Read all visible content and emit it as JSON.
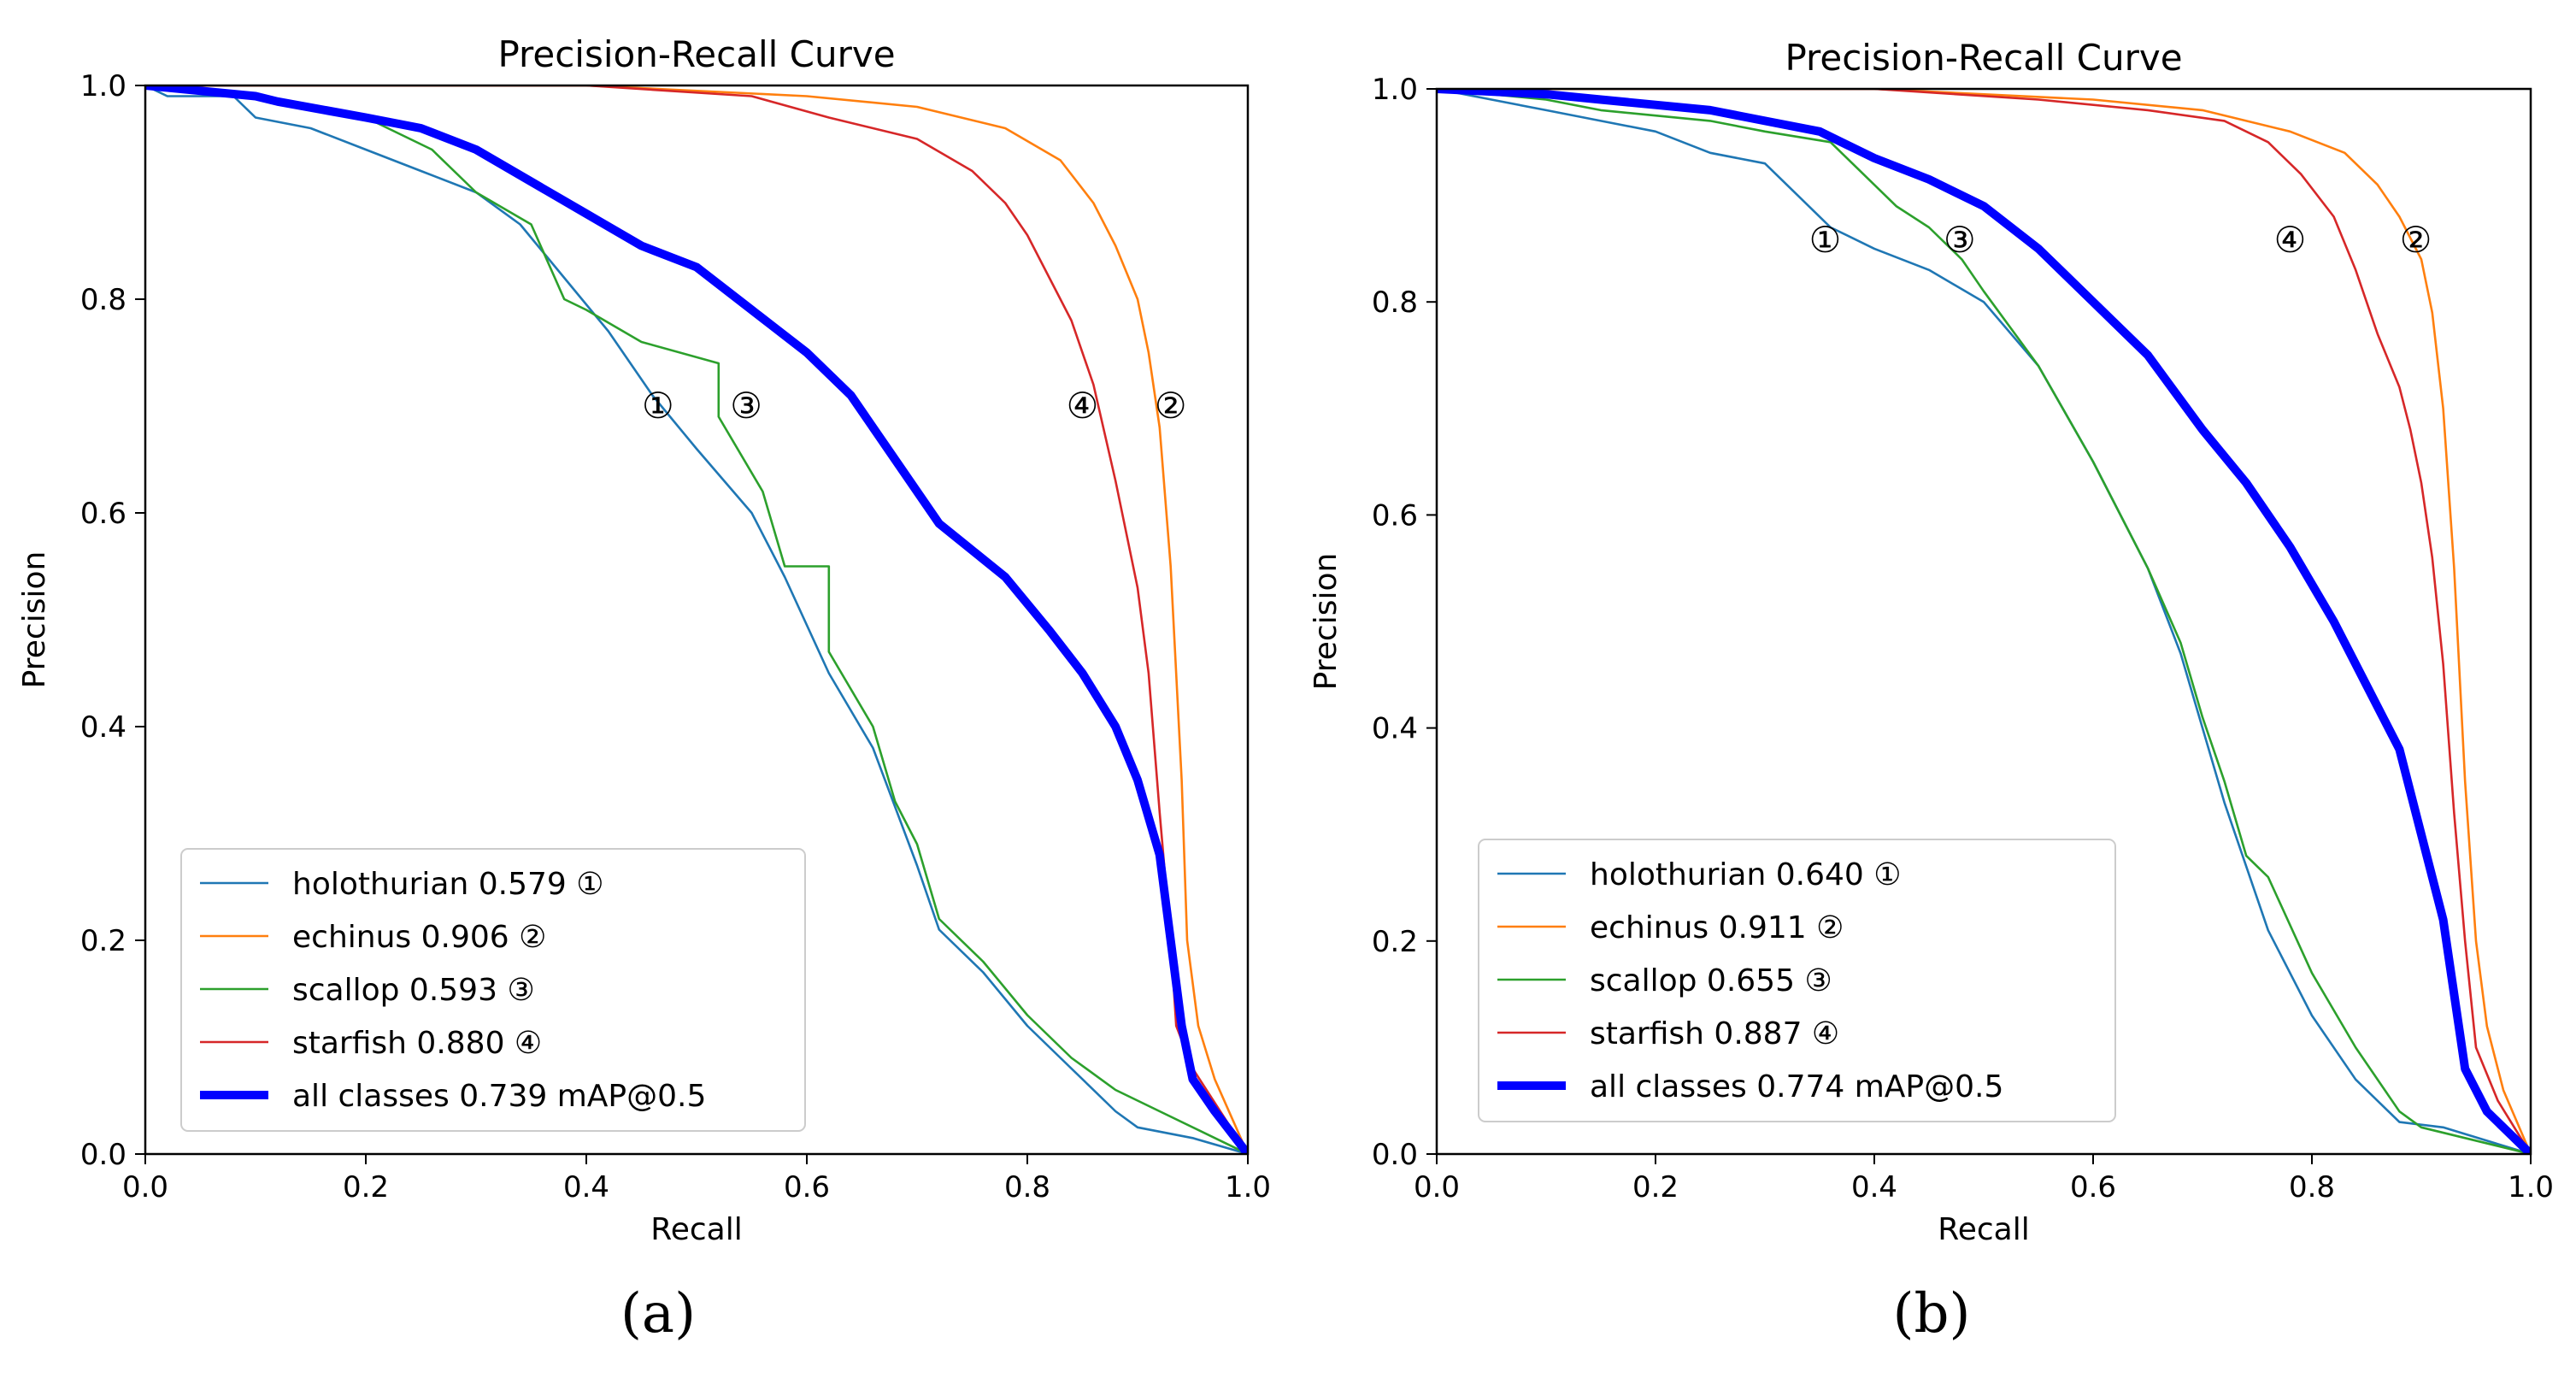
{
  "chart_data": [
    {
      "type": "line",
      "panel": "a",
      "caption": "(a)",
      "title": "Precision-Recall Curve",
      "xlabel": "Recall",
      "ylabel": "Precision",
      "xlim": [
        0,
        1
      ],
      "ylim": [
        0,
        1
      ],
      "xticks": [
        "0.0",
        "0.2",
        "0.4",
        "0.6",
        "0.8",
        "1.0"
      ],
      "yticks": [
        "0.0",
        "0.2",
        "0.4",
        "0.6",
        "0.8",
        "1.0"
      ],
      "legend_position": "lower-left",
      "series": [
        {
          "name": "holothurian",
          "legend": "holothurian 0.579 ①",
          "color": "#1f77b4",
          "bold": false,
          "points": [
            [
              0,
              1
            ],
            [
              0.02,
              0.99
            ],
            [
              0.08,
              0.99
            ],
            [
              0.1,
              0.97
            ],
            [
              0.15,
              0.96
            ],
            [
              0.2,
              0.94
            ],
            [
              0.25,
              0.92
            ],
            [
              0.3,
              0.9
            ],
            [
              0.34,
              0.87
            ],
            [
              0.38,
              0.82
            ],
            [
              0.42,
              0.77
            ],
            [
              0.46,
              0.71
            ],
            [
              0.5,
              0.66
            ],
            [
              0.55,
              0.6
            ],
            [
              0.58,
              0.54
            ],
            [
              0.62,
              0.45
            ],
            [
              0.66,
              0.38
            ],
            [
              0.7,
              0.27
            ],
            [
              0.72,
              0.21
            ],
            [
              0.76,
              0.17
            ],
            [
              0.8,
              0.12
            ],
            [
              0.84,
              0.08
            ],
            [
              0.88,
              0.04
            ],
            [
              0.9,
              0.025
            ],
            [
              0.95,
              0.015
            ],
            [
              1.0,
              0
            ]
          ]
        },
        {
          "name": "echinus",
          "legend": "echinus 0.906 ②",
          "color": "#ff7f0e",
          "bold": false,
          "points": [
            [
              0,
              1
            ],
            [
              0.4,
              1
            ],
            [
              0.6,
              0.99
            ],
            [
              0.7,
              0.98
            ],
            [
              0.78,
              0.96
            ],
            [
              0.83,
              0.93
            ],
            [
              0.86,
              0.89
            ],
            [
              0.88,
              0.85
            ],
            [
              0.9,
              0.8
            ],
            [
              0.91,
              0.75
            ],
            [
              0.92,
              0.68
            ],
            [
              0.93,
              0.55
            ],
            [
              0.94,
              0.35
            ],
            [
              0.945,
              0.2
            ],
            [
              0.955,
              0.12
            ],
            [
              0.97,
              0.07
            ],
            [
              1.0,
              0
            ]
          ]
        },
        {
          "name": "scallop",
          "legend": "scallop 0.593 ③",
          "color": "#2ca02c",
          "bold": false,
          "points": [
            [
              0,
              1
            ],
            [
              0.1,
              0.99
            ],
            [
              0.15,
              0.98
            ],
            [
              0.2,
              0.97
            ],
            [
              0.26,
              0.94
            ],
            [
              0.3,
              0.9
            ],
            [
              0.35,
              0.87
            ],
            [
              0.38,
              0.8
            ],
            [
              0.4,
              0.79
            ],
            [
              0.45,
              0.76
            ],
            [
              0.52,
              0.74
            ],
            [
              0.52,
              0.69
            ],
            [
              0.56,
              0.62
            ],
            [
              0.58,
              0.55
            ],
            [
              0.62,
              0.55
            ],
            [
              0.62,
              0.47
            ],
            [
              0.66,
              0.4
            ],
            [
              0.68,
              0.33
            ],
            [
              0.7,
              0.29
            ],
            [
              0.72,
              0.22
            ],
            [
              0.76,
              0.18
            ],
            [
              0.8,
              0.13
            ],
            [
              0.84,
              0.09
            ],
            [
              0.88,
              0.06
            ],
            [
              0.92,
              0.04
            ],
            [
              1.0,
              0
            ]
          ]
        },
        {
          "name": "starfish",
          "legend": "starfish 0.880 ④",
          "color": "#d62728",
          "bold": false,
          "points": [
            [
              0,
              1
            ],
            [
              0.4,
              1
            ],
            [
              0.55,
              0.99
            ],
            [
              0.62,
              0.97
            ],
            [
              0.7,
              0.95
            ],
            [
              0.75,
              0.92
            ],
            [
              0.78,
              0.89
            ],
            [
              0.8,
              0.86
            ],
            [
              0.82,
              0.82
            ],
            [
              0.84,
              0.78
            ],
            [
              0.86,
              0.72
            ],
            [
              0.88,
              0.63
            ],
            [
              0.9,
              0.53
            ],
            [
              0.91,
              0.45
            ],
            [
              0.92,
              0.32
            ],
            [
              0.93,
              0.2
            ],
            [
              0.935,
              0.12
            ],
            [
              0.95,
              0.08
            ],
            [
              1.0,
              0
            ]
          ]
        },
        {
          "name": "all classes",
          "legend": "all classes 0.739 mAP@0.5",
          "color": "#0000ff",
          "bold": true,
          "points": [
            [
              0,
              1
            ],
            [
              0.1,
              0.99
            ],
            [
              0.12,
              0.985
            ],
            [
              0.2,
              0.97
            ],
            [
              0.25,
              0.96
            ],
            [
              0.3,
              0.94
            ],
            [
              0.35,
              0.91
            ],
            [
              0.4,
              0.88
            ],
            [
              0.45,
              0.85
            ],
            [
              0.5,
              0.83
            ],
            [
              0.55,
              0.79
            ],
            [
              0.6,
              0.75
            ],
            [
              0.64,
              0.71
            ],
            [
              0.68,
              0.65
            ],
            [
              0.72,
              0.59
            ],
            [
              0.78,
              0.54
            ],
            [
              0.82,
              0.49
            ],
            [
              0.85,
              0.45
            ],
            [
              0.88,
              0.4
            ],
            [
              0.9,
              0.35
            ],
            [
              0.92,
              0.28
            ],
            [
              0.93,
              0.2
            ],
            [
              0.94,
              0.12
            ],
            [
              0.95,
              0.07
            ],
            [
              0.97,
              0.04
            ],
            [
              1.0,
              0
            ]
          ]
        }
      ],
      "annotations": [
        {
          "text": "①",
          "x": 0.465,
          "y": 0.7
        },
        {
          "text": "③",
          "x": 0.545,
          "y": 0.7
        },
        {
          "text": "④",
          "x": 0.85,
          "y": 0.7
        },
        {
          "text": "②",
          "x": 0.93,
          "y": 0.7
        }
      ]
    },
    {
      "type": "line",
      "panel": "b",
      "caption": "(b)",
      "title": "Precision-Recall Curve",
      "xlabel": "Recall",
      "ylabel": "Precision",
      "xlim": [
        0,
        1
      ],
      "ylim": [
        0,
        1
      ],
      "xticks": [
        "0.0",
        "0.2",
        "0.4",
        "0.6",
        "0.8",
        "1.0"
      ],
      "yticks": [
        "0.0",
        "0.2",
        "0.4",
        "0.6",
        "0.8",
        "1.0"
      ],
      "legend_position": "lower-left",
      "series": [
        {
          "name": "holothurian",
          "legend": "holothurian 0.640 ①",
          "color": "#1f77b4",
          "bold": false,
          "points": [
            [
              0,
              1
            ],
            [
              0.05,
              0.99
            ],
            [
              0.1,
              0.98
            ],
            [
              0.15,
              0.97
            ],
            [
              0.2,
              0.96
            ],
            [
              0.25,
              0.94
            ],
            [
              0.3,
              0.93
            ],
            [
              0.33,
              0.9
            ],
            [
              0.36,
              0.87
            ],
            [
              0.4,
              0.85
            ],
            [
              0.45,
              0.83
            ],
            [
              0.5,
              0.8
            ],
            [
              0.55,
              0.74
            ],
            [
              0.6,
              0.65
            ],
            [
              0.65,
              0.55
            ],
            [
              0.68,
              0.47
            ],
            [
              0.7,
              0.4
            ],
            [
              0.72,
              0.33
            ],
            [
              0.74,
              0.27
            ],
            [
              0.76,
              0.21
            ],
            [
              0.8,
              0.13
            ],
            [
              0.84,
              0.07
            ],
            [
              0.88,
              0.03
            ],
            [
              0.92,
              0.025
            ],
            [
              1.0,
              0
            ]
          ]
        },
        {
          "name": "echinus",
          "legend": "echinus 0.911 ②",
          "color": "#ff7f0e",
          "bold": false,
          "points": [
            [
              0,
              1
            ],
            [
              0.4,
              1
            ],
            [
              0.6,
              0.99
            ],
            [
              0.7,
              0.98
            ],
            [
              0.78,
              0.96
            ],
            [
              0.83,
              0.94
            ],
            [
              0.86,
              0.91
            ],
            [
              0.88,
              0.88
            ],
            [
              0.9,
              0.84
            ],
            [
              0.91,
              0.79
            ],
            [
              0.92,
              0.7
            ],
            [
              0.93,
              0.55
            ],
            [
              0.94,
              0.35
            ],
            [
              0.95,
              0.2
            ],
            [
              0.96,
              0.12
            ],
            [
              0.975,
              0.06
            ],
            [
              1.0,
              0
            ]
          ]
        },
        {
          "name": "scallop",
          "legend": "scallop 0.655  ③",
          "color": "#2ca02c",
          "bold": false,
          "points": [
            [
              0,
              1
            ],
            [
              0.1,
              0.99
            ],
            [
              0.15,
              0.98
            ],
            [
              0.2,
              0.975
            ],
            [
              0.25,
              0.97
            ],
            [
              0.3,
              0.96
            ],
            [
              0.36,
              0.95
            ],
            [
              0.39,
              0.92
            ],
            [
              0.42,
              0.89
            ],
            [
              0.45,
              0.87
            ],
            [
              0.48,
              0.84
            ],
            [
              0.5,
              0.81
            ],
            [
              0.55,
              0.74
            ],
            [
              0.6,
              0.65
            ],
            [
              0.65,
              0.55
            ],
            [
              0.68,
              0.48
            ],
            [
              0.7,
              0.41
            ],
            [
              0.72,
              0.35
            ],
            [
              0.74,
              0.28
            ],
            [
              0.76,
              0.26
            ],
            [
              0.8,
              0.17
            ],
            [
              0.84,
              0.1
            ],
            [
              0.88,
              0.04
            ],
            [
              0.9,
              0.025
            ],
            [
              1.0,
              0
            ]
          ]
        },
        {
          "name": "starfish",
          "legend": "starfish 0.887 ④",
          "color": "#d62728",
          "bold": false,
          "points": [
            [
              0,
              1
            ],
            [
              0.4,
              1
            ],
            [
              0.55,
              0.99
            ],
            [
              0.65,
              0.98
            ],
            [
              0.72,
              0.97
            ],
            [
              0.76,
              0.95
            ],
            [
              0.79,
              0.92
            ],
            [
              0.82,
              0.88
            ],
            [
              0.84,
              0.83
            ],
            [
              0.86,
              0.77
            ],
            [
              0.88,
              0.72
            ],
            [
              0.89,
              0.68
            ],
            [
              0.9,
              0.63
            ],
            [
              0.91,
              0.56
            ],
            [
              0.92,
              0.46
            ],
            [
              0.93,
              0.32
            ],
            [
              0.94,
              0.2
            ],
            [
              0.95,
              0.1
            ],
            [
              0.97,
              0.05
            ],
            [
              1.0,
              0
            ]
          ]
        },
        {
          "name": "all classes",
          "legend": "all classes 0.774 mAP@0.5",
          "color": "#0000ff",
          "bold": true,
          "points": [
            [
              0,
              1
            ],
            [
              0.1,
              0.995
            ],
            [
              0.15,
              0.99
            ],
            [
              0.2,
              0.985
            ],
            [
              0.25,
              0.98
            ],
            [
              0.3,
              0.97
            ],
            [
              0.35,
              0.96
            ],
            [
              0.4,
              0.935
            ],
            [
              0.45,
              0.915
            ],
            [
              0.5,
              0.89
            ],
            [
              0.55,
              0.85
            ],
            [
              0.6,
              0.8
            ],
            [
              0.65,
              0.75
            ],
            [
              0.7,
              0.68
            ],
            [
              0.74,
              0.63
            ],
            [
              0.78,
              0.57
            ],
            [
              0.82,
              0.5
            ],
            [
              0.85,
              0.44
            ],
            [
              0.88,
              0.38
            ],
            [
              0.9,
              0.3
            ],
            [
              0.92,
              0.22
            ],
            [
              0.93,
              0.15
            ],
            [
              0.94,
              0.08
            ],
            [
              0.96,
              0.04
            ],
            [
              1.0,
              0
            ]
          ]
        }
      ],
      "annotations": [
        {
          "text": "①",
          "x": 0.355,
          "y": 0.858
        },
        {
          "text": "③",
          "x": 0.478,
          "y": 0.858
        },
        {
          "text": "④",
          "x": 0.78,
          "y": 0.858
        },
        {
          "text": "②",
          "x": 0.895,
          "y": 0.858
        }
      ]
    }
  ]
}
